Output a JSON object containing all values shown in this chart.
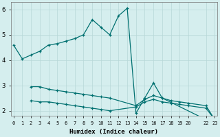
{
  "xlabel": "Humidex (Indice chaleur)",
  "background_color": "#d5eeee",
  "grid_color": "#b8d8d8",
  "line_color": "#007070",
  "xlim": [
    -0.3,
    23.3
  ],
  "ylim": [
    1.8,
    6.3
  ],
  "yticks": [
    2,
    3,
    4,
    5,
    6
  ],
  "xticks": [
    0,
    1,
    2,
    3,
    4,
    5,
    6,
    7,
    8,
    9,
    10,
    11,
    12,
    13,
    14,
    15,
    16,
    17,
    18,
    19,
    20,
    22,
    23
  ],
  "xtick_labels": [
    "0",
    "1",
    "2",
    "3",
    "4",
    "5",
    "6",
    "7",
    "8",
    "9",
    "10",
    "11",
    "12",
    "13",
    "14",
    "15",
    "16",
    "17",
    "18",
    "19",
    "20",
    "22",
    "23"
  ],
  "series1_x": [
    0,
    1,
    2,
    3,
    4,
    5,
    6,
    7,
    8,
    9,
    10,
    11,
    12,
    13
  ],
  "series1_y": [
    4.6,
    4.05,
    4.2,
    4.35,
    4.6,
    4.65,
    4.75,
    4.85,
    5.0,
    5.6,
    5.3,
    5.0,
    5.75,
    6.05
  ],
  "series2_x": [
    14,
    15,
    16,
    17,
    22,
    23
  ],
  "series2_y": [
    1.9,
    2.5,
    3.1,
    2.5,
    1.65,
    1.65
  ],
  "series3_x": [
    2,
    3,
    4,
    5,
    6,
    7,
    8,
    9,
    10,
    11,
    14,
    15,
    16,
    17,
    18,
    19,
    20,
    22,
    23
  ],
  "series3_y": [
    2.95,
    2.95,
    2.85,
    2.8,
    2.75,
    2.7,
    2.65,
    2.6,
    2.55,
    2.5,
    2.2,
    2.45,
    2.6,
    2.5,
    2.4,
    2.35,
    2.3,
    2.2,
    1.65
  ],
  "series4_x": [
    2,
    3,
    4,
    5,
    6,
    7,
    8,
    9,
    10,
    11,
    14,
    15,
    16,
    17,
    18,
    19,
    20,
    22,
    23
  ],
  "series4_y": [
    2.4,
    2.35,
    2.35,
    2.3,
    2.25,
    2.2,
    2.15,
    2.1,
    2.05,
    2.0,
    2.15,
    2.35,
    2.45,
    2.35,
    2.3,
    2.25,
    2.2,
    2.1,
    1.65
  ]
}
